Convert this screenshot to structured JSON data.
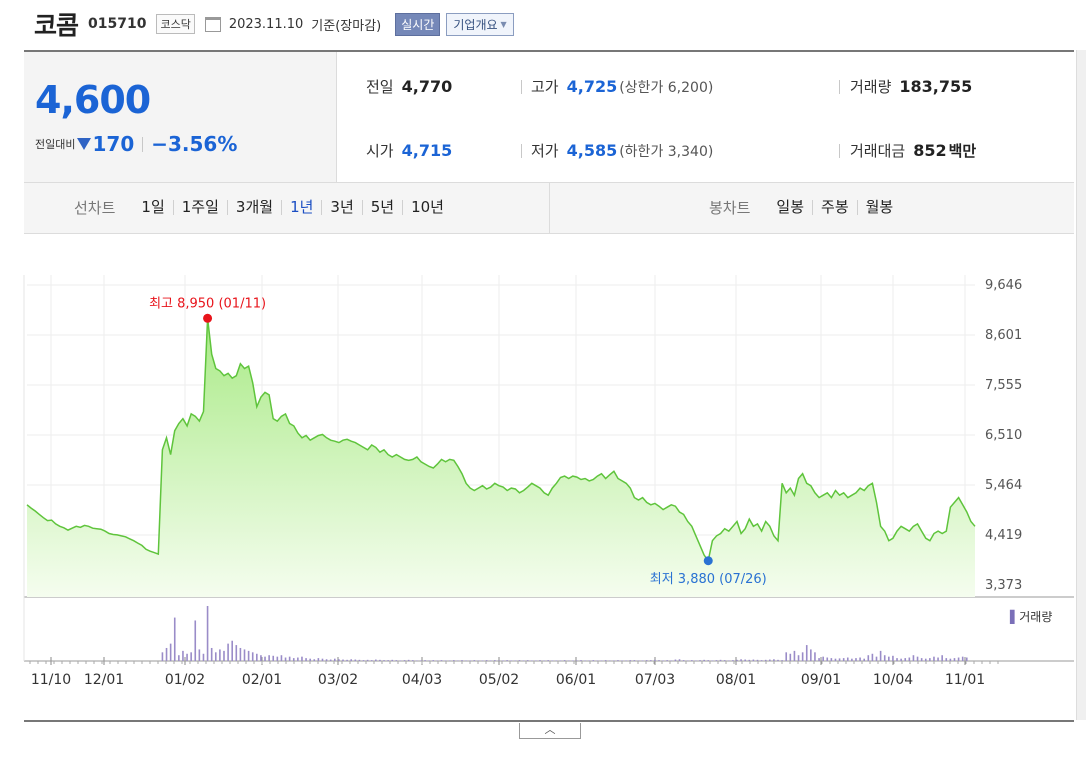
{
  "header": {
    "name": "코콤",
    "code": "015710",
    "market": "코스닥",
    "date": "2023.11.10",
    "basis": "기준(장마감)",
    "realtime_btn": "실시간",
    "company_btn": "기업개요"
  },
  "quote": {
    "price": "4,600",
    "change_label": "전일대비",
    "change": "170",
    "change_pct": "−3.56%",
    "prev_label": "전일",
    "prev": "4,770",
    "open_label": "시가",
    "open": "4,715",
    "high_label": "고가",
    "high": "4,725",
    "upper_limit": "(상한가 6,200)",
    "low_label": "저가",
    "low": "4,585",
    "lower_limit": "(하한가 3,340)",
    "volume_label": "거래량",
    "volume": "183,755",
    "amount_label": "거래대금",
    "amount": "852",
    "amount_unit": "백만"
  },
  "tabs": {
    "line_head": "선차트",
    "line": [
      "1일",
      "1주일",
      "3개월",
      "1년",
      "3년",
      "5년",
      "10년"
    ],
    "active": "1년",
    "candle_head": "봉차트",
    "candle": [
      "일봉",
      "주봉",
      "월봉"
    ]
  },
  "chart_data": {
    "type": "area",
    "title": "",
    "xlabel": "",
    "ylabel": "",
    "ylim": [
      3373,
      9646
    ],
    "y_ticks": [
      "9,646",
      "8,601",
      "7,555",
      "6,510",
      "5,464",
      "4,419",
      "3,373"
    ],
    "x_ticks": [
      "11/10",
      "12/01",
      "01/02",
      "02/01",
      "03/02",
      "04/03",
      "05/02",
      "06/01",
      "07/03",
      "08/01",
      "09/01",
      "10/04",
      "11/01"
    ],
    "high_annotation": "최고 8,950 (01/11)",
    "low_annotation": "최저 3,880 (07/26)",
    "volume_legend": "거래량",
    "colors": {
      "line": "#5fc43c",
      "fill_top": "#a9ea86",
      "fill_bottom": "#f5fdef",
      "high": "#e8141b",
      "low": "#2a72d3",
      "volume": "#9a8cc8"
    },
    "series": [
      {
        "values": [
          5050,
          4980,
          4920,
          4850,
          4780,
          4720,
          4730,
          4650,
          4600,
          4570,
          4520,
          4560,
          4600,
          4580,
          4620,
          4600,
          4560,
          4550,
          4540,
          4500,
          4450,
          4430,
          4420,
          4400,
          4380,
          4340,
          4300,
          4250,
          4200,
          4120,
          4080,
          4050,
          4020,
          6200,
          6450,
          6100,
          6600,
          6750,
          6850,
          6700,
          6950,
          6900,
          6800,
          7000,
          8950,
          8200,
          7900,
          7850,
          7750,
          7800,
          7700,
          7750,
          8000,
          7900,
          7950,
          7600,
          7100,
          7300,
          7400,
          7350,
          6850,
          6800,
          6900,
          6950,
          6750,
          6700,
          6550,
          6450,
          6500,
          6400,
          6450,
          6500,
          6520,
          6450,
          6400,
          6380,
          6350,
          6400,
          6420,
          6380,
          6350,
          6300,
          6250,
          6200,
          6300,
          6250,
          6150,
          6200,
          6100,
          6050,
          6100,
          6050,
          6000,
          5980,
          6000,
          6050,
          5950,
          5900,
          5850,
          5820,
          5900,
          6000,
          5950,
          6000,
          5980,
          5850,
          5700,
          5500,
          5400,
          5350,
          5400,
          5450,
          5380,
          5420,
          5500,
          5450,
          5420,
          5350,
          5400,
          5380,
          5300,
          5350,
          5420,
          5500,
          5450,
          5400,
          5300,
          5250,
          5400,
          5500,
          5620,
          5650,
          5600,
          5650,
          5630,
          5580,
          5600,
          5550,
          5580,
          5650,
          5700,
          5600,
          5680,
          5750,
          5600,
          5550,
          5500,
          5400,
          5200,
          5150,
          5200,
          5100,
          5050,
          5080,
          5020,
          4950,
          5000,
          5050,
          5020,
          4900,
          4850,
          4700,
          4600,
          4400,
          4200,
          4000,
          3880,
          4300,
          4400,
          4450,
          4550,
          4500,
          4600,
          4700,
          4450,
          4550,
          4750,
          4600,
          4650,
          4500,
          4700,
          4600,
          4400,
          4300,
          5500,
          5300,
          5400,
          5250,
          5600,
          5700,
          5500,
          5450,
          5300,
          5200,
          5250,
          5300,
          5200,
          5350,
          5250,
          5300,
          5200,
          5250,
          5300,
          5400,
          5350,
          5450,
          5500,
          5100,
          4600,
          4500,
          4300,
          4350,
          4500,
          4600,
          4550,
          4500,
          4600,
          4650,
          4500,
          4350,
          4300,
          4450,
          4500,
          4450,
          4500,
          5000,
          5100,
          5200,
          5050,
          4900,
          4700,
          4600
        ]
      }
    ],
    "volume": [
      0,
      0,
      0,
      0,
      0,
      0,
      0,
      0,
      0,
      0,
      0,
      0,
      0,
      0,
      0,
      0,
      0,
      0,
      0,
      0,
      0,
      0,
      0,
      0,
      0,
      0,
      0,
      0,
      0,
      0,
      0,
      0,
      0,
      30,
      45,
      60,
      150,
      20,
      35,
      25,
      30,
      140,
      40,
      25,
      190,
      45,
      30,
      40,
      35,
      60,
      70,
      55,
      45,
      40,
      35,
      30,
      25,
      20,
      15,
      20,
      18,
      15,
      20,
      12,
      15,
      10,
      12,
      15,
      10,
      8,
      6,
      10,
      8,
      6,
      5,
      8,
      6,
      5,
      4,
      6,
      5,
      4,
      3,
      4,
      3,
      5,
      4,
      3,
      3,
      4,
      3,
      2,
      3,
      4,
      3,
      2,
      2,
      3,
      2,
      3,
      2,
      3,
      2,
      2,
      3,
      2,
      3,
      2,
      2,
      3,
      2,
      2,
      3,
      2,
      3,
      2,
      2,
      3,
      2,
      2,
      3,
      2,
      3,
      2,
      2,
      3,
      2,
      3,
      2,
      2,
      2,
      3,
      2,
      2,
      2,
      3,
      2,
      2,
      3,
      2,
      2,
      3,
      2,
      2,
      3,
      2,
      2,
      3,
      3,
      2,
      2,
      3,
      3,
      4,
      3,
      2,
      3,
      2,
      5,
      6,
      3,
      2,
      3,
      2,
      3,
      4,
      3,
      2,
      3,
      4,
      3,
      2,
      3,
      4,
      6,
      5,
      4,
      5,
      4,
      3,
      4,
      5,
      6,
      4,
      3,
      30,
      25,
      35,
      20,
      30,
      55,
      40,
      30,
      10,
      15,
      12,
      10,
      8,
      9,
      10,
      12,
      8,
      10,
      12,
      8,
      20,
      25,
      15,
      35,
      20,
      15,
      18,
      10,
      8,
      10,
      12,
      20,
      15,
      10,
      8,
      10,
      15,
      12,
      20,
      10,
      8,
      10,
      12,
      15,
      12
    ]
  }
}
